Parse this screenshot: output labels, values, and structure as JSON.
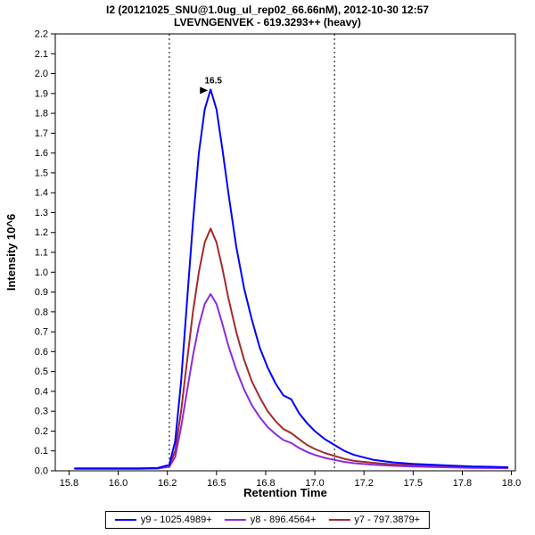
{
  "chart_data": {
    "type": "line",
    "title": "I2 (20121025_SNU@1.0ug_ul_rep02_66.66nM), 2012-10-30 12:57",
    "subtitle": "LVEVNGENVEK - 619.3293++ (heavy)",
    "xlabel": "Retention Time",
    "ylabel": "Intensity 10^6",
    "xlim": [
      15.68,
      18.02
    ],
    "ylim": [
      0.0,
      2.2
    ],
    "grid": false,
    "legend_position": "bottom",
    "x_ticks": {
      "values": [
        15.75,
        16.0,
        16.25,
        16.5,
        16.75,
        17.0,
        17.25,
        17.5,
        17.75,
        18.0
      ],
      "labels": [
        "15.8",
        "16.0",
        "16.2",
        "16.5",
        "16.8",
        "17.0",
        "17.2",
        "17.5",
        "17.8",
        "18.0"
      ]
    },
    "y_ticks": {
      "values": [
        0.0,
        0.1,
        0.2,
        0.3,
        0.4,
        0.5,
        0.6,
        0.7,
        0.8,
        0.9,
        1.0,
        1.1,
        1.2,
        1.3,
        1.4,
        1.5,
        1.6,
        1.7,
        1.8,
        1.9,
        2.0,
        2.1,
        2.2
      ],
      "labels": [
        "0.0",
        "0.1",
        "0.2",
        "0.3",
        "0.4",
        "0.5",
        "0.6",
        "0.7",
        "0.8",
        "0.9",
        "1.0",
        "1.1",
        "1.2",
        "1.3",
        "1.4",
        "1.5",
        "1.6",
        "1.7",
        "1.8",
        "1.9",
        "2.0",
        "2.1",
        "2.2"
      ]
    },
    "integration_boundaries": [
      16.26,
      17.1
    ],
    "peak_annotation": {
      "text": "16.5",
      "rt": 16.47,
      "intensity": 1.92,
      "color": "#0000FF"
    },
    "x": [
      15.78,
      15.9,
      16.0,
      16.1,
      16.2,
      16.26,
      16.29,
      16.32,
      16.35,
      16.38,
      16.41,
      16.44,
      16.47,
      16.5,
      16.53,
      16.56,
      16.6,
      16.64,
      16.68,
      16.72,
      16.76,
      16.8,
      16.84,
      16.88,
      16.92,
      16.96,
      17.0,
      17.05,
      17.1,
      17.15,
      17.2,
      17.3,
      17.4,
      17.5,
      17.6,
      17.7,
      17.8,
      17.9,
      17.98
    ],
    "series": [
      {
        "name": "y9 - 1025.4989+",
        "color": "#0000FF",
        "values": [
          0.012,
          0.012,
          0.012,
          0.012,
          0.014,
          0.03,
          0.15,
          0.45,
          0.85,
          1.25,
          1.6,
          1.82,
          1.92,
          1.82,
          1.62,
          1.4,
          1.13,
          0.92,
          0.76,
          0.62,
          0.52,
          0.44,
          0.38,
          0.36,
          0.29,
          0.24,
          0.2,
          0.16,
          0.13,
          0.1,
          0.08,
          0.055,
          0.042,
          0.035,
          0.03,
          0.026,
          0.022,
          0.02,
          0.018
        ]
      },
      {
        "name": "y8 - 896.4564+",
        "color": "#8A2BE2",
        "values": [
          0.01,
          0.01,
          0.01,
          0.01,
          0.011,
          0.02,
          0.07,
          0.22,
          0.4,
          0.58,
          0.73,
          0.84,
          0.89,
          0.84,
          0.74,
          0.63,
          0.51,
          0.41,
          0.33,
          0.27,
          0.22,
          0.185,
          0.155,
          0.14,
          0.115,
          0.095,
          0.08,
          0.065,
          0.055,
          0.045,
          0.038,
          0.03,
          0.025,
          0.021,
          0.019,
          0.017,
          0.015,
          0.014,
          0.013
        ]
      },
      {
        "name": "y7 - 797.3879+",
        "color": "#A52A2A",
        "values": [
          0.01,
          0.01,
          0.01,
          0.01,
          0.012,
          0.025,
          0.1,
          0.3,
          0.55,
          0.8,
          1.0,
          1.15,
          1.22,
          1.15,
          1.02,
          0.87,
          0.7,
          0.56,
          0.45,
          0.37,
          0.3,
          0.25,
          0.21,
          0.19,
          0.16,
          0.13,
          0.11,
          0.09,
          0.075,
          0.06,
          0.05,
          0.04,
          0.032,
          0.027,
          0.024,
          0.021,
          0.019,
          0.017,
          0.016
        ]
      }
    ]
  }
}
